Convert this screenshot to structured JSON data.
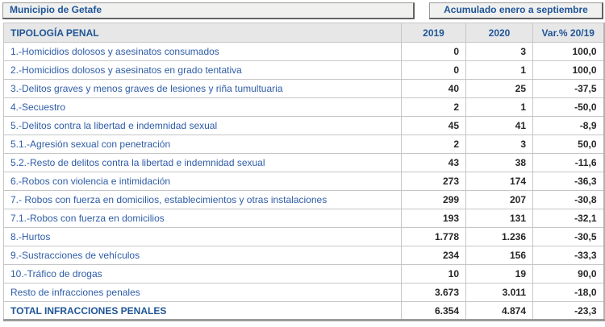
{
  "header": {
    "municipality_label": "Municipio de Getafe",
    "period_label": "Acumulado enero a septiembre"
  },
  "table": {
    "columns": {
      "label": "TIPOLOGÍA PENAL",
      "y2019": "2019",
      "y2020": "2020",
      "variation": "Var.% 20/19"
    },
    "rows": [
      {
        "label": "1.-Homicidios dolosos y asesinatos consumados",
        "y2019": "0",
        "y2020": "3",
        "variation": "100,0",
        "total": false
      },
      {
        "label": "2.-Homicidios dolosos y asesinatos en grado tentativa",
        "y2019": "0",
        "y2020": "1",
        "variation": "100,0",
        "total": false
      },
      {
        "label": "3.-Delitos graves y menos graves de lesiones y riña tumultuaria",
        "y2019": "40",
        "y2020": "25",
        "variation": "-37,5",
        "total": false
      },
      {
        "label": "4.-Secuestro",
        "y2019": "2",
        "y2020": "1",
        "variation": "-50,0",
        "total": false
      },
      {
        "label": "5.-Delitos contra la libertad e indemnidad sexual",
        "y2019": "45",
        "y2020": "41",
        "variation": "-8,9",
        "total": false
      },
      {
        "label": "5.1.-Agresión sexual con penetración",
        "y2019": "2",
        "y2020": "3",
        "variation": "50,0",
        "total": false
      },
      {
        "label": "5.2.-Resto de delitos contra la libertad e indemnidad sexual",
        "y2019": "43",
        "y2020": "38",
        "variation": "-11,6",
        "total": false
      },
      {
        "label": "6.-Robos con violencia e intimidación",
        "y2019": "273",
        "y2020": "174",
        "variation": "-36,3",
        "total": false
      },
      {
        "label": "7.- Robos con fuerza en domicilios, establecimientos y otras instalaciones",
        "y2019": "299",
        "y2020": "207",
        "variation": "-30,8",
        "total": false
      },
      {
        "label": "7.1.-Robos con fuerza en domicilios",
        "y2019": "193",
        "y2020": "131",
        "variation": "-32,1",
        "total": false
      },
      {
        "label": "8.-Hurtos",
        "y2019": "1.778",
        "y2020": "1.236",
        "variation": "-30,5",
        "total": false
      },
      {
        "label": "9.-Sustracciones de vehículos",
        "y2019": "234",
        "y2020": "156",
        "variation": "-33,3",
        "total": false
      },
      {
        "label": "10.-Tráfico de drogas",
        "y2019": "10",
        "y2020": "19",
        "variation": "90,0",
        "total": false
      },
      {
        "label": "Resto de infracciones penales",
        "y2019": "3.673",
        "y2020": "3.011",
        "variation": "-18,0",
        "total": false
      },
      {
        "label": "TOTAL INFRACCIONES PENALES",
        "y2019": "6.354",
        "y2020": "4.874",
        "variation": "-23,3",
        "total": true
      }
    ]
  },
  "colors": {
    "accent_blue": "#1f5597",
    "row_label_blue": "#2e5ca6",
    "number_text": "#262626",
    "header_bg": "#e7e7e7",
    "grid_line": "#c6c6c6",
    "button_bg": "#f0f0ef"
  }
}
